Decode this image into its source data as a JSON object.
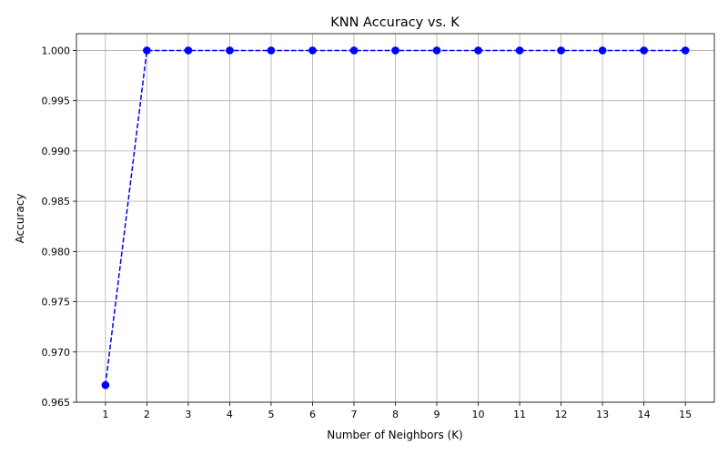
{
  "chart_data": {
    "type": "line",
    "title": "KNN Accuracy vs. K",
    "xlabel": "Number of Neighbors (K)",
    "ylabel": "Accuracy",
    "x": [
      1,
      2,
      3,
      4,
      5,
      6,
      7,
      8,
      9,
      10,
      11,
      12,
      13,
      14,
      15
    ],
    "series": [
      {
        "values": [
          0.9667,
          1.0,
          1.0,
          1.0,
          1.0,
          1.0,
          1.0,
          1.0,
          1.0,
          1.0,
          1.0,
          1.0,
          1.0,
          1.0,
          1.0
        ],
        "color": "#0000ff",
        "line_style": "dashed",
        "marker": "circle"
      }
    ],
    "xticks": [
      1,
      2,
      3,
      4,
      5,
      6,
      7,
      8,
      9,
      10,
      11,
      12,
      13,
      14,
      15
    ],
    "yticks": [
      "0.965",
      "0.970",
      "0.975",
      "0.980",
      "0.985",
      "0.990",
      "0.995",
      "1.000"
    ],
    "xlim": [
      0.3,
      15.7
    ],
    "ylim": [
      0.965,
      1.00167
    ],
    "grid": true
  }
}
